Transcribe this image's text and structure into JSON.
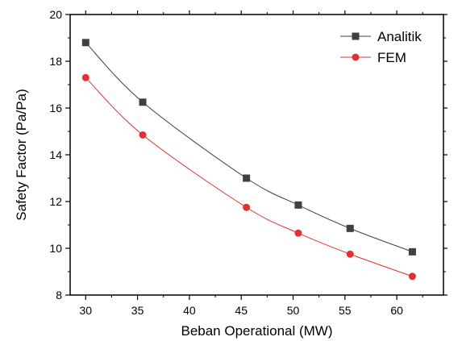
{
  "chart_data": {
    "type": "line",
    "xlabel": "Beban Operational (MW)",
    "ylabel": "Safety Factor (Pa/Pa)",
    "xlim": [
      28.5,
      64.5
    ],
    "ylim": [
      8,
      20
    ],
    "xticks": [
      30,
      35,
      40,
      45,
      50,
      55,
      60
    ],
    "yticks": [
      8,
      10,
      12,
      14,
      16,
      18,
      20
    ],
    "legend_position": "top-right",
    "grid": false,
    "series": [
      {
        "name": "Analitik",
        "color": "#404040",
        "marker": "square",
        "x": [
          30,
          35.5,
          45.5,
          50.5,
          55.5,
          61.5
        ],
        "y": [
          18.8,
          16.25,
          13.0,
          11.85,
          10.85,
          9.85
        ]
      },
      {
        "name": "FEM",
        "color": "#e03030",
        "marker": "circle",
        "x": [
          30,
          35.5,
          45.5,
          50.5,
          55.5,
          61.5
        ],
        "y": [
          17.3,
          14.85,
          11.75,
          10.65,
          9.75,
          8.8
        ]
      }
    ]
  }
}
